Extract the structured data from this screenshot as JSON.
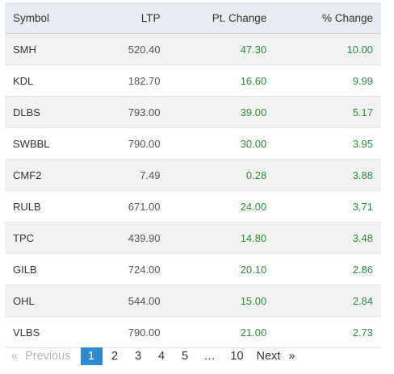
{
  "table": {
    "headers": {
      "symbol": "Symbol",
      "ltp": "LTP",
      "pt_change": "Pt. Change",
      "pct_change": "% Change"
    },
    "rows": [
      {
        "symbol": "SMH",
        "ltp": "520.40",
        "pt_change": "47.30",
        "pct_change": "10.00"
      },
      {
        "symbol": "KDL",
        "ltp": "182.70",
        "pt_change": "16.60",
        "pct_change": "9.99"
      },
      {
        "symbol": "DLBS",
        "ltp": "793.00",
        "pt_change": "39.00",
        "pct_change": "5.17"
      },
      {
        "symbol": "SWBBL",
        "ltp": "790.00",
        "pt_change": "30.00",
        "pct_change": "3.95"
      },
      {
        "symbol": "CMF2",
        "ltp": "7.49",
        "pt_change": "0.28",
        "pct_change": "3.88"
      },
      {
        "symbol": "RULB",
        "ltp": "671.00",
        "pt_change": "24.00",
        "pct_change": "3.71"
      },
      {
        "symbol": "TPC",
        "ltp": "439.90",
        "pt_change": "14.80",
        "pct_change": "3.48"
      },
      {
        "symbol": "GILB",
        "ltp": "724.00",
        "pt_change": "20.10",
        "pct_change": "2.86"
      },
      {
        "symbol": "OHL",
        "ltp": "544.00",
        "pt_change": "15.00",
        "pct_change": "2.84"
      },
      {
        "symbol": "VLBS",
        "ltp": "790.00",
        "pt_change": "21.00",
        "pct_change": "2.73"
      }
    ],
    "colors": {
      "header_bg": "#e9ecef",
      "stripe_bg": "#f2f2f2",
      "positive": "#2e8b3e"
    }
  },
  "pagination": {
    "prev_arrow": "«",
    "prev_label": "Previous",
    "pages": [
      "1",
      "2",
      "3",
      "4",
      "5"
    ],
    "active_page": "1",
    "ellipsis": "…",
    "last_page": "10",
    "next_label": "Next",
    "next_arrow": "»",
    "active_color": "#2e8bcf"
  }
}
